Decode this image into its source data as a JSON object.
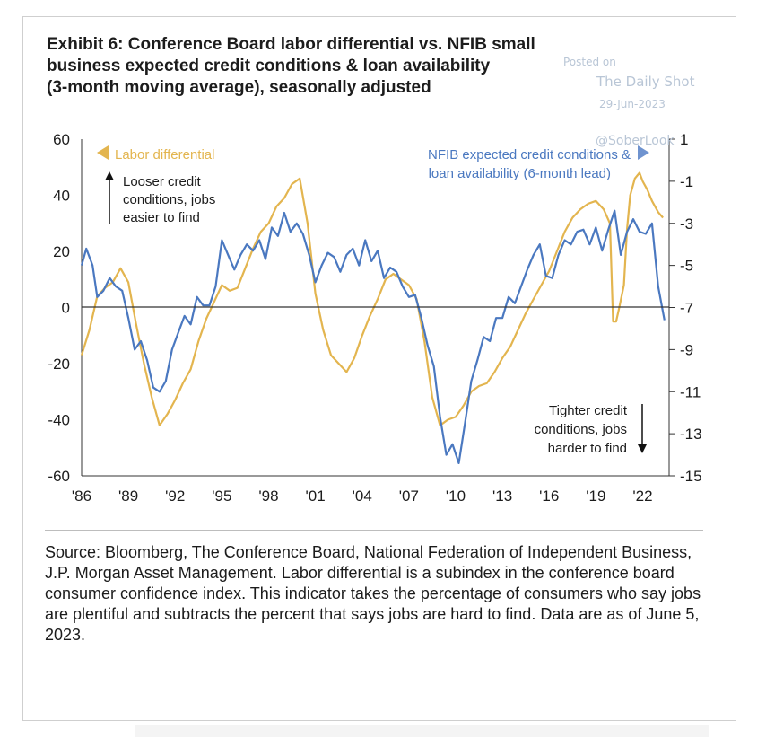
{
  "title_lines": [
    "Exhibit 6: Conference Board labor differential vs. NFIB small",
    "business expected credit conditions & loan availability",
    "(3-month moving average), seasonally adjusted"
  ],
  "watermark": {
    "posted": "Posted on",
    "site": "The Daily Shot",
    "date": "29-Jun-2023",
    "handle": "@SoberLook"
  },
  "legend": {
    "labor": "Labor differential",
    "nfib_line1": "NFIB expected credit conditions &",
    "nfib_line2": "loan availability (6-month lead)"
  },
  "annotations": {
    "looser": [
      "Looser credit",
      "conditions, jobs",
      "easier to find"
    ],
    "tighter": [
      "Tighter credit",
      "conditions, jobs",
      "harder to find"
    ]
  },
  "footnote": "Source: Bloomberg, The Conference Board, National Federation of Independent Business, J.P. Morgan Asset Management. Labor differential is a subindex in the conference board consumer confidence index. This indicator takes the percentage of consumers who say jobs are plentiful and subtracts the percent that says jobs are hard to find.  Data are as of June 5, 2023.",
  "colors": {
    "labor": "#e3b54f",
    "nfib": "#4a78c0",
    "text": "#1c1c1c",
    "zero_line": "#333333"
  },
  "chart_data": {
    "type": "line",
    "grid": false,
    "legend_placement": "top (labor top-left, NFIB top-right)",
    "x_ticks": [
      "'86",
      "'89",
      "'92",
      "'95",
      "'98",
      "'01",
      "'04",
      "'07",
      "'10",
      "'13",
      "'16",
      "'19",
      "'22"
    ],
    "x_tick_years": [
      1986,
      1989,
      1992,
      1995,
      1998,
      2001,
      2004,
      2007,
      2010,
      2013,
      2016,
      2019,
      2022
    ],
    "xlim": [
      1986,
      2023.7
    ],
    "y_left": {
      "lim": [
        -60,
        60
      ],
      "ticks": [
        "60",
        "40",
        "20",
        "0",
        "-20",
        "-40",
        "-60"
      ],
      "tick_values": [
        60,
        40,
        20,
        0,
        -20,
        -40,
        -60
      ]
    },
    "y_right": {
      "lim": [
        -15,
        1
      ],
      "ticks": [
        "1",
        "-1",
        "-3",
        "-5",
        "-7",
        "-9",
        "-11",
        "-13",
        "-15"
      ],
      "tick_values": [
        1,
        -1,
        -3,
        -5,
        -7,
        -9,
        -11,
        -13,
        -15
      ]
    },
    "series": [
      {
        "name": "Labor differential",
        "axis": "left",
        "x": [
          1986.0,
          1986.5,
          1987.0,
          1987.5,
          1988.0,
          1988.5,
          1989.0,
          1989.5,
          1990.0,
          1990.5,
          1991.0,
          1991.5,
          1992.0,
          1992.5,
          1993.0,
          1993.5,
          1994.0,
          1994.5,
          1995.0,
          1995.5,
          1996.0,
          1996.5,
          1997.0,
          1997.5,
          1998.0,
          1998.5,
          1999.0,
          1999.5,
          2000.0,
          2000.5,
          2001.0,
          2001.5,
          2002.0,
          2002.5,
          2003.0,
          2003.5,
          2004.0,
          2004.5,
          2005.0,
          2005.5,
          2006.0,
          2006.5,
          2007.0,
          2007.5,
          2008.0,
          2008.5,
          2009.0,
          2009.5,
          2010.0,
          2010.5,
          2011.0,
          2011.5,
          2012.0,
          2012.5,
          2013.0,
          2013.5,
          2014.0,
          2014.5,
          2015.0,
          2015.5,
          2016.0,
          2016.5,
          2017.0,
          2017.5,
          2018.0,
          2018.5,
          2019.0,
          2019.5,
          2019.9,
          2020.1,
          2020.3,
          2020.5,
          2020.8,
          2021.0,
          2021.2,
          2021.5,
          2021.8,
          2022.0,
          2022.3,
          2022.6,
          2023.0,
          2023.3
        ],
        "values": [
          -17,
          -8,
          4,
          7,
          9,
          14,
          9,
          -6,
          -20,
          -32,
          -42,
          -38,
          -33,
          -27,
          -22,
          -12,
          -4,
          2,
          8,
          6,
          7,
          14,
          21,
          27,
          30,
          36,
          39,
          44,
          46,
          30,
          5,
          -8,
          -17,
          -20,
          -23,
          -18,
          -10,
          -3,
          3,
          10,
          12,
          10,
          8,
          3,
          -12,
          -32,
          -42,
          -40,
          -39,
          -35,
          -30,
          -28,
          -27,
          -23,
          -18,
          -14,
          -8,
          -2,
          3,
          8,
          13,
          20,
          27,
          32,
          35,
          37,
          38,
          35,
          30,
          -5,
          -5,
          0,
          8,
          28,
          40,
          46,
          48,
          45,
          42,
          38,
          34,
          32
        ]
      },
      {
        "name": "NFIB expected credit conditions & loan availability (6-month lead)",
        "axis": "right",
        "x": [
          1986.0,
          1986.3,
          1986.7,
          1987.0,
          1987.4,
          1987.8,
          1988.2,
          1988.6,
          1989.0,
          1989.4,
          1989.8,
          1990.2,
          1990.6,
          1991.0,
          1991.4,
          1991.8,
          1992.2,
          1992.6,
          1993.0,
          1993.4,
          1993.8,
          1994.2,
          1994.6,
          1995.0,
          1995.4,
          1995.8,
          1996.2,
          1996.6,
          1997.0,
          1997.4,
          1997.8,
          1998.2,
          1998.6,
          1999.0,
          1999.4,
          1999.8,
          2000.2,
          2000.6,
          2001.0,
          2001.4,
          2001.8,
          2002.2,
          2002.6,
          2003.0,
          2003.4,
          2003.8,
          2004.2,
          2004.6,
          2005.0,
          2005.4,
          2005.8,
          2006.2,
          2006.6,
          2007.0,
          2007.4,
          2007.8,
          2008.2,
          2008.6,
          2009.0,
          2009.4,
          2009.8,
          2010.2,
          2010.6,
          2011.0,
          2011.4,
          2011.8,
          2012.2,
          2012.6,
          2013.0,
          2013.4,
          2013.8,
          2014.2,
          2014.6,
          2015.0,
          2015.4,
          2015.8,
          2016.2,
          2016.6,
          2017.0,
          2017.4,
          2017.8,
          2018.2,
          2018.6,
          2019.0,
          2019.4,
          2019.8,
          2020.2,
          2020.6,
          2021.0,
          2021.4,
          2021.8,
          2022.2,
          2022.6,
          2023.0,
          2023.4
        ],
        "values": [
          -5.0,
          -4.2,
          -5.0,
          -6.5,
          -6.2,
          -5.6,
          -6.0,
          -6.2,
          -7.5,
          -9.0,
          -8.6,
          -9.5,
          -10.8,
          -11.0,
          -10.5,
          -9.0,
          -8.2,
          -7.4,
          -7.8,
          -6.5,
          -6.9,
          -6.9,
          -6.0,
          -3.8,
          -4.5,
          -5.2,
          -4.5,
          -4.0,
          -4.3,
          -3.8,
          -4.7,
          -3.2,
          -3.6,
          -2.5,
          -3.4,
          -3.0,
          -3.5,
          -4.5,
          -5.8,
          -5.0,
          -4.4,
          -4.6,
          -5.3,
          -4.5,
          -4.2,
          -5.0,
          -3.8,
          -4.8,
          -4.3,
          -5.6,
          -5.1,
          -5.3,
          -6.0,
          -6.5,
          -6.4,
          -7.5,
          -8.8,
          -9.8,
          -12.2,
          -14.0,
          -13.5,
          -14.4,
          -12.5,
          -10.5,
          -9.5,
          -8.4,
          -8.6,
          -7.5,
          -7.5,
          -6.5,
          -6.8,
          -6.0,
          -5.2,
          -4.5,
          -4.0,
          -5.5,
          -5.6,
          -4.5,
          -3.8,
          -4.0,
          -3.4,
          -3.3,
          -4.0,
          -3.2,
          -4.3,
          -3.3,
          -2.4,
          -4.5,
          -3.4,
          -2.8,
          -3.4,
          -3.5,
          -3.0,
          -6.0,
          -7.6
        ]
      }
    ]
  }
}
